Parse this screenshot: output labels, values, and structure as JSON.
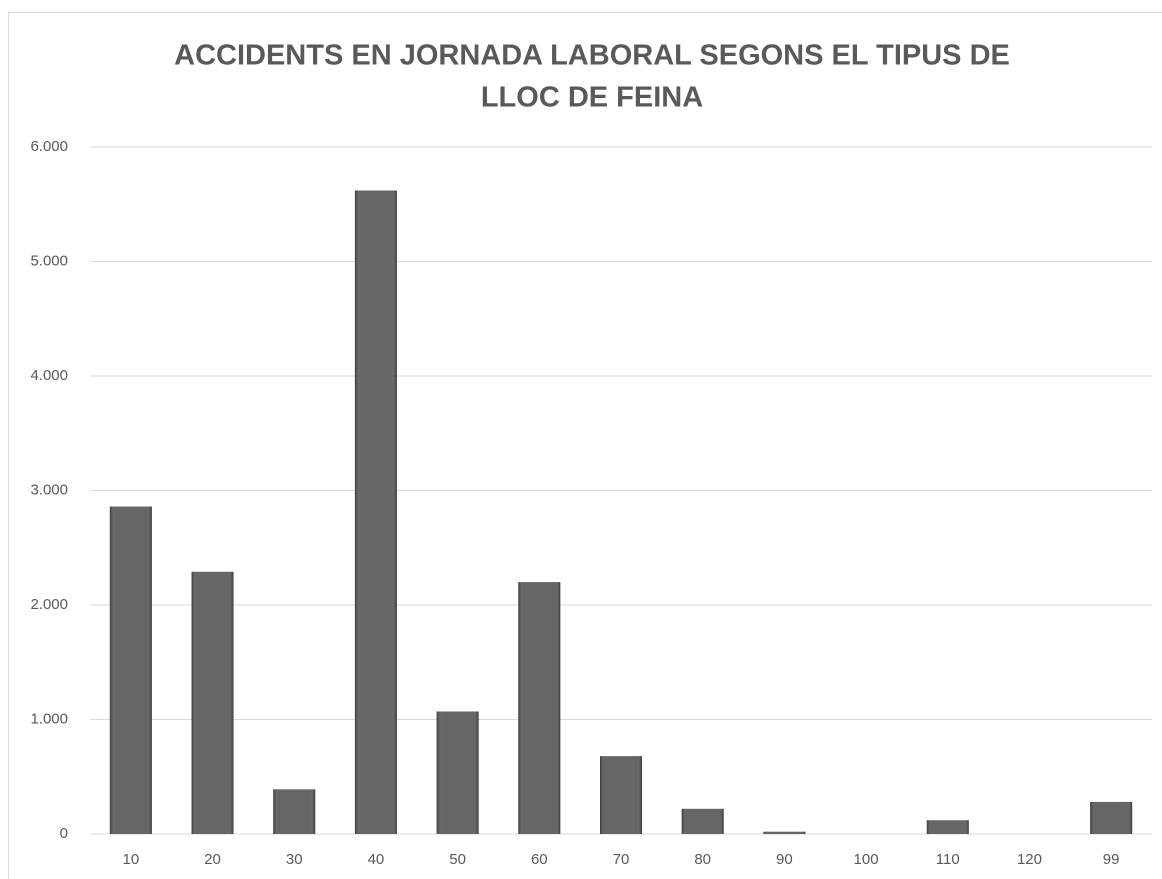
{
  "chart_data": {
    "type": "bar",
    "title": [
      "ACCIDENTS EN JORNADA LABORAL SEGONS EL TIPUS DE",
      "LLOC DE FEINA"
    ],
    "categories": [
      "10",
      "20",
      "30",
      "40",
      "50",
      "60",
      "70",
      "80",
      "90",
      "100",
      "110",
      "120",
      "99"
    ],
    "values": [
      2860,
      2290,
      390,
      5620,
      1070,
      2200,
      680,
      220,
      20,
      0,
      120,
      0,
      280
    ],
    "color": "#595959",
    "ylim": [
      0,
      6000
    ],
    "yticks": [
      0,
      {
        "value": 1000,
        "label": "1.000"
      },
      {
        "value": 2000,
        "label": "2.000"
      },
      {
        "value": 3000,
        "label": "3.000"
      },
      {
        "value": 4000,
        "label": "4.000"
      },
      {
        "value": 5000,
        "label": "5.000"
      },
      {
        "value": 6000,
        "label": "6.000"
      }
    ],
    "grid": true
  }
}
